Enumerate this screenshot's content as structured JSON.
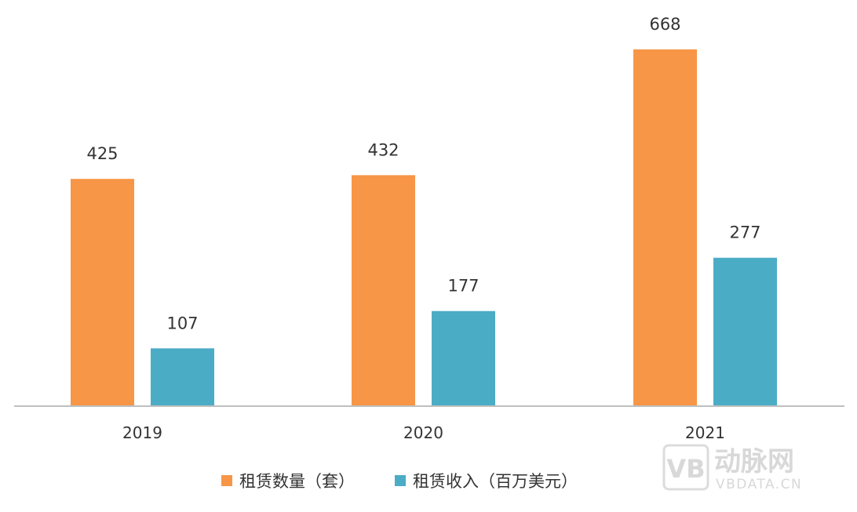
{
  "chart_data": {
    "type": "bar",
    "categories": [
      "2019",
      "2020",
      "2021"
    ],
    "series": [
      {
        "name": "租赁数量（套）",
        "values": [
          425,
          432,
          668
        ],
        "color": "#F79646"
      },
      {
        "name": "租赁收入（百万美元）",
        "values": [
          107,
          177,
          277
        ],
        "color": "#4BACC6"
      }
    ],
    "ylim": [
      0,
      700
    ],
    "grid": false,
    "legend_position": "bottom",
    "axis_color": "#BFBFBF"
  },
  "watermark": {
    "logo": "VB",
    "name": "动脉网",
    "site": "VBDATA.CN"
  }
}
